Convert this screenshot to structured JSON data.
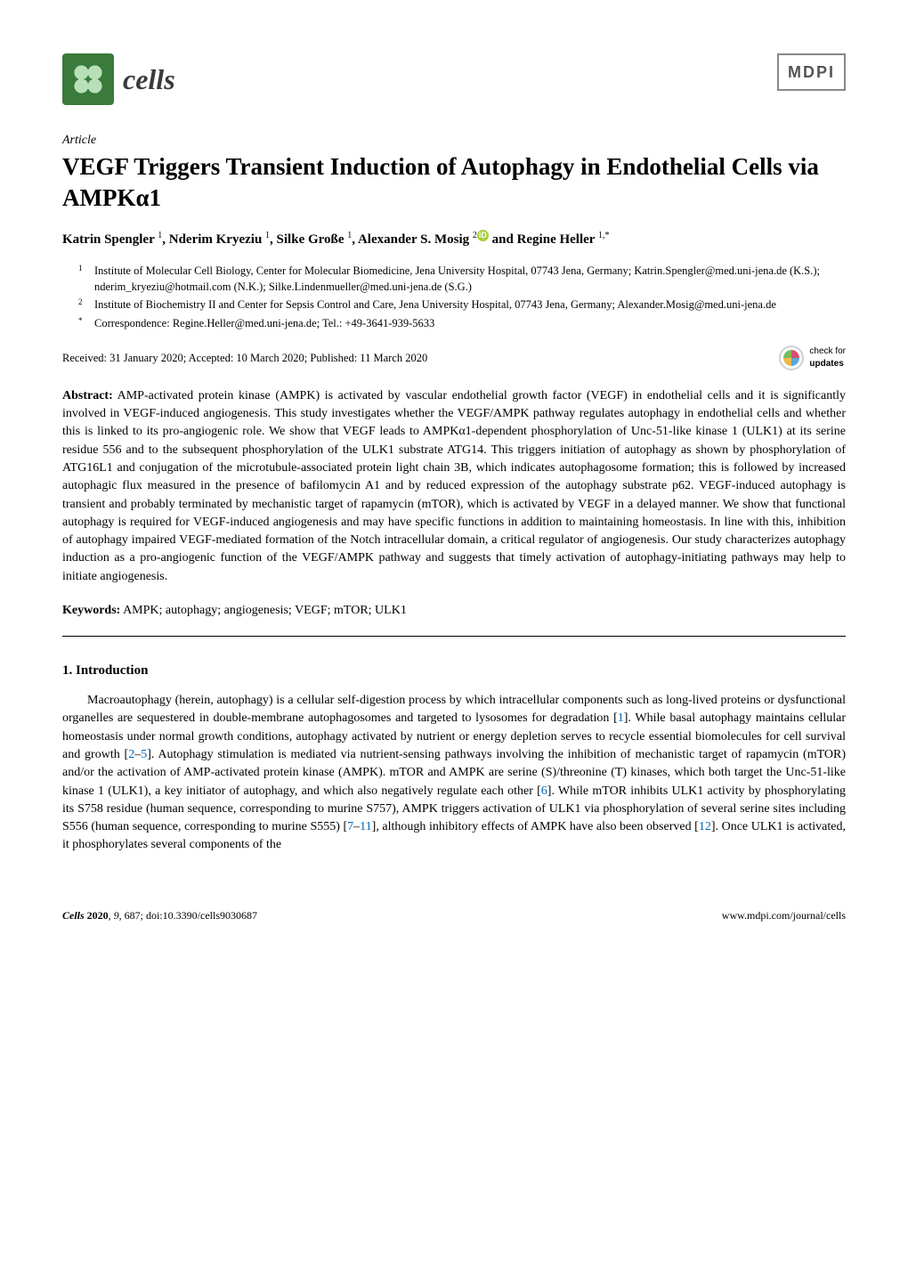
{
  "journal": {
    "name": "cells",
    "publisher": "MDPI"
  },
  "article": {
    "type": "Article",
    "title": "VEGF Triggers Transient Induction of Autophagy in Endothelial Cells via AMPKα1"
  },
  "authors": {
    "a1": "Katrin Spengler",
    "a1_sup": "1",
    "a2": "Nderim Kryeziu",
    "a2_sup": "1",
    "a3": "Silke Große",
    "a3_sup": "1",
    "a4": "Alexander S. Mosig",
    "a4_sup": "2",
    "a5": "Regine Heller",
    "a5_sup": "1,*"
  },
  "affiliations": {
    "n1": "1",
    "t1": "Institute of Molecular Cell Biology, Center for Molecular Biomedicine, Jena University Hospital, 07743 Jena, Germany; Katrin.Spengler@med.uni-jena.de (K.S.); nderim_kryeziu@hotmail.com (N.K.); Silke.Lindenmueller@med.uni-jena.de (S.G.)",
    "n2": "2",
    "t2": "Institute of Biochemistry II and Center for Sepsis Control and Care, Jena University Hospital, 07743 Jena, Germany; Alexander.Mosig@med.uni-jena.de",
    "n3": "*",
    "t3": "Correspondence: Regine.Heller@med.uni-jena.de; Tel.: +49-3641-939-5633"
  },
  "dates": "Received: 31 January 2020; Accepted: 10 March 2020; Published: 11 March 2020",
  "check_updates": {
    "l1": "check for",
    "l2": "updates"
  },
  "abstract": {
    "label": "Abstract:",
    "text": "AMP-activated protein kinase (AMPK) is activated by vascular endothelial growth factor (VEGF) in endothelial cells and it is significantly involved in VEGF-induced angiogenesis. This study investigates whether the VEGF/AMPK pathway regulates autophagy in endothelial cells and whether this is linked to its pro-angiogenic role. We show that VEGF leads to AMPKα1-dependent phosphorylation of Unc-51-like kinase 1 (ULK1) at its serine residue 556 and to the subsequent phosphorylation of the ULK1 substrate ATG14. This triggers initiation of autophagy as shown by phosphorylation of ATG16L1 and conjugation of the microtubule-associated protein light chain 3B, which indicates autophagosome formation; this is followed by increased autophagic flux measured in the presence of bafilomycin A1 and by reduced expression of the autophagy substrate p62. VEGF-induced autophagy is transient and probably terminated by mechanistic target of rapamycin (mTOR), which is activated by VEGF in a delayed manner. We show that functional autophagy is required for VEGF-induced angiogenesis and may have specific functions in addition to maintaining homeostasis. In line with this, inhibition of autophagy impaired VEGF-mediated formation of the Notch intracellular domain, a critical regulator of angiogenesis. Our study characterizes autophagy induction as a pro-angiogenic function of the VEGF/AMPK pathway and suggests that timely activation of autophagy-initiating pathways may help to initiate angiogenesis."
  },
  "keywords": {
    "label": "Keywords:",
    "text": "AMPK; autophagy; angiogenesis; VEGF; mTOR; ULK1"
  },
  "section1": {
    "heading": "1. Introduction",
    "p1a": "Macroautophagy (herein, autophagy) is a cellular self-digestion process by which intracellular components such as long-lived proteins or dysfunctional organelles are sequestered in double-membrane autophagosomes and targeted to lysosomes for degradation [",
    "r1": "1",
    "p1b": "]. While basal autophagy maintains cellular homeostasis under normal growth conditions, autophagy activated by nutrient or energy depletion serves to recycle essential biomolecules for cell survival and growth [",
    "r2": "2",
    "dash1": "–",
    "r3": "5",
    "p1c": "]. Autophagy stimulation is mediated via nutrient-sensing pathways involving the inhibition of mechanistic target of rapamycin (mTOR) and/or the activation of AMP-activated protein kinase (AMPK). mTOR and AMPK are serine (S)/threonine (T) kinases, which both target the Unc-51-like kinase 1 (ULK1), a key initiator of autophagy, and which also negatively regulate each other [",
    "r4": "6",
    "p1d": "]. While mTOR inhibits ULK1 activity by phosphorylating its S758 residue (human sequence, corresponding to murine S757), AMPK triggers activation of ULK1 via phosphorylation of several serine sites including S556 (human sequence, corresponding to murine S555) [",
    "r5": "7",
    "dash2": "–",
    "r6": "11",
    "p1e": "], although inhibitory effects of AMPK have also been observed [",
    "r7": "12",
    "p1f": "]. Once ULK1 is activated, it phosphorylates several components of the"
  },
  "footer": {
    "left": "Cells 2020, 9, 687; doi:10.3390/cells9030687",
    "right": "www.mdpi.com/journal/cells"
  },
  "colors": {
    "ref": "#0066b3",
    "logo_green": "#3a7a3a",
    "orcid": "#a6ce39"
  }
}
